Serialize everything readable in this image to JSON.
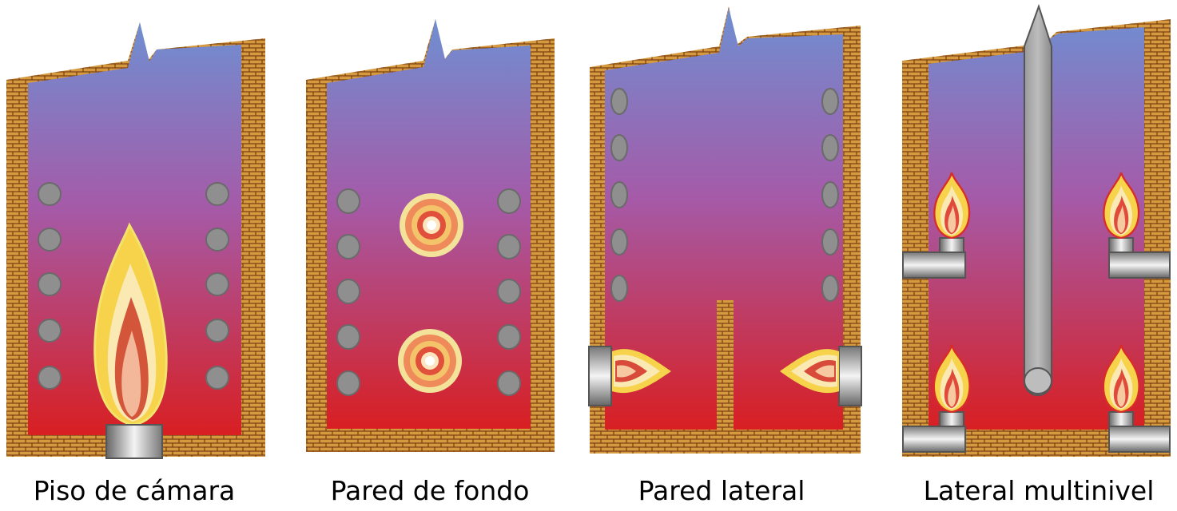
{
  "diagrams": [
    {
      "id": "floor",
      "caption": "Piso de cámara"
    },
    {
      "id": "backwall",
      "caption": "Pared de fondo"
    },
    {
      "id": "sidewall",
      "caption": "Pared lateral"
    },
    {
      "id": "multilevel",
      "caption": "Lateral multinivel"
    }
  ],
  "colors": {
    "brick": "#d59a3e",
    "mortar": "#7a3d12",
    "gradient_top": "#6f8fd2",
    "gradient_mid": "#a55aa8",
    "gradient_bottom": "#d81f22",
    "tube": "#8f8f8f",
    "tube_outline": "#555555"
  }
}
